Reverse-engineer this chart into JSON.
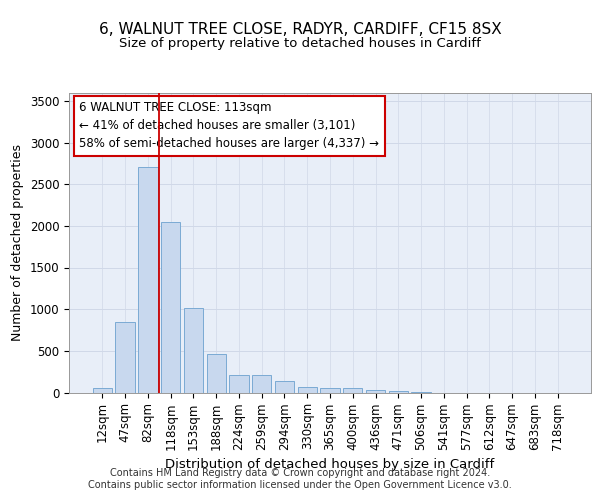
{
  "title1": "6, WALNUT TREE CLOSE, RADYR, CARDIFF, CF15 8SX",
  "title2": "Size of property relative to detached houses in Cardiff",
  "xlabel": "Distribution of detached houses by size in Cardiff",
  "ylabel": "Number of detached properties",
  "categories": [
    "12sqm",
    "47sqm",
    "82sqm",
    "118sqm",
    "153sqm",
    "188sqm",
    "224sqm",
    "259sqm",
    "294sqm",
    "330sqm",
    "365sqm",
    "400sqm",
    "436sqm",
    "471sqm",
    "506sqm",
    "541sqm",
    "577sqm",
    "612sqm",
    "647sqm",
    "683sqm",
    "718sqm"
  ],
  "values": [
    60,
    850,
    2710,
    2050,
    1010,
    460,
    215,
    215,
    135,
    65,
    55,
    55,
    30,
    20,
    5,
    0,
    0,
    0,
    0,
    0,
    0
  ],
  "bar_color": "#c8d8ee",
  "bar_edge_color": "#7baad4",
  "grid_color": "#d0d8e8",
  "bg_color": "#e8eef8",
  "vline_color": "#cc0000",
  "vline_xindex": 3,
  "annotation_text": "6 WALNUT TREE CLOSE: 113sqm\n← 41% of detached houses are smaller (3,101)\n58% of semi-detached houses are larger (4,337) →",
  "annotation_box_edgecolor": "#cc0000",
  "ylim": [
    0,
    3600
  ],
  "yticks": [
    0,
    500,
    1000,
    1500,
    2000,
    2500,
    3000,
    3500
  ],
  "footer": "Contains HM Land Registry data © Crown copyright and database right 2024.\nContains public sector information licensed under the Open Government Licence v3.0.",
  "title1_fontsize": 11,
  "title2_fontsize": 9.5,
  "xlabel_fontsize": 9.5,
  "ylabel_fontsize": 9,
  "tick_fontsize": 8.5,
  "annotation_fontsize": 8.5,
  "footer_fontsize": 7
}
